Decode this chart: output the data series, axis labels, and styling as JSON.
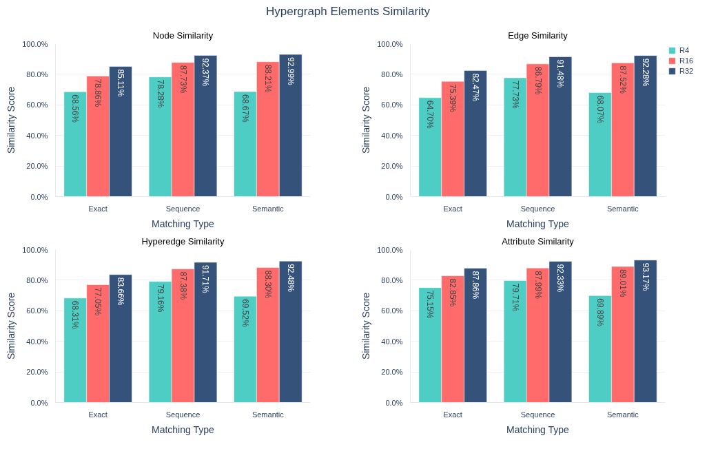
{
  "chart_data": [
    {
      "type": "bar",
      "title": "Node Similarity",
      "xlabel": "Matching Type",
      "ylabel": "Similarity Score",
      "annotations": [
        "Hypergraph Elements Similarity"
      ],
      "categories": [
        "Exact",
        "Sequence",
        "Semantic"
      ],
      "ylim": [
        0,
        100
      ],
      "yticks": [
        {
          "value": 0,
          "label": "0.0%"
        },
        {
          "value": 20,
          "label": "20.0%"
        },
        {
          "value": 40,
          "label": "40.0%"
        },
        {
          "value": 60,
          "label": "60.0%"
        },
        {
          "value": 80,
          "label": "80.0%"
        },
        {
          "value": 100,
          "label": "100.0%"
        }
      ],
      "grid": "y",
      "series": [
        {
          "color": "#4ecdc4",
          "values": [
            68.56,
            78.28,
            68.67
          ],
          "value_labels": [
            "68.56%",
            "78.28%",
            "68.67%"
          ]
        },
        {
          "color": "#ff6b6b",
          "values": [
            78.86,
            87.73,
            88.21
          ],
          "value_labels": [
            "78.86%",
            "87.73%",
            "88.21%"
          ]
        },
        {
          "color": "#34527a",
          "values": [
            85.11,
            92.37,
            92.99
          ],
          "value_labels": [
            "85.11%",
            "92.37%",
            "92.99%"
          ]
        }
      ]
    },
    {
      "type": "bar",
      "title": "Edge Similarity",
      "xlabel": "Matching Type",
      "ylabel": "Similarity Score",
      "categories": [
        "Exact",
        "Sequence",
        "Semantic"
      ],
      "ylim": [
        0,
        100
      ],
      "yticks": [
        {
          "value": 0,
          "label": "0.0%"
        },
        {
          "value": 20,
          "label": "20.0%"
        },
        {
          "value": 40,
          "label": "40.0%"
        },
        {
          "value": 60,
          "label": "60.0%"
        },
        {
          "value": 80,
          "label": "80.0%"
        },
        {
          "value": 100,
          "label": "100.0%"
        }
      ],
      "grid": "y",
      "legend": "right",
      "series": [
        {
          "name": "R4",
          "color": "#4ecdc4",
          "values": [
            64.7,
            77.73,
            68.07
          ],
          "value_labels": [
            "64.70%",
            "77.73%",
            "68.07%"
          ]
        },
        {
          "name": "R16",
          "color": "#ff6b6b",
          "values": [
            75.39,
            86.79,
            87.52
          ],
          "value_labels": [
            "75.39%",
            "86.79%",
            "87.52%"
          ]
        },
        {
          "name": "R32",
          "color": "#34527a",
          "values": [
            82.47,
            91.48,
            92.28
          ],
          "value_labels": [
            "82.47%",
            "91.48%",
            "92.28%"
          ]
        }
      ]
    },
    {
      "type": "bar",
      "title": "Hyperedge Similarity",
      "xlabel": "Matching Type",
      "ylabel": "Similarity Score",
      "categories": [
        "Exact",
        "Sequence",
        "Semantic"
      ],
      "ylim": [
        0,
        100
      ],
      "yticks": [
        {
          "value": 0,
          "label": "0.0%"
        },
        {
          "value": 20,
          "label": "20.0%"
        },
        {
          "value": 40,
          "label": "40.0%"
        },
        {
          "value": 60,
          "label": "60.0%"
        },
        {
          "value": 80,
          "label": "80.0%"
        },
        {
          "value": 100,
          "label": "100.0%"
        }
      ],
      "grid": "y",
      "series": [
        {
          "color": "#4ecdc4",
          "values": [
            68.31,
            79.16,
            69.52
          ],
          "value_labels": [
            "68.31%",
            "79.16%",
            "69.52%"
          ]
        },
        {
          "color": "#ff6b6b",
          "values": [
            77.05,
            87.38,
            88.3
          ],
          "value_labels": [
            "77.05%",
            "87.38%",
            "88.30%"
          ]
        },
        {
          "color": "#34527a",
          "values": [
            83.66,
            91.71,
            92.48
          ],
          "value_labels": [
            "83.66%",
            "91.71%",
            "92.48%"
          ]
        }
      ]
    },
    {
      "type": "bar",
      "title": "Attribute Similarity",
      "xlabel": "Matching Type",
      "ylabel": "Similarity Score",
      "categories": [
        "Exact",
        "Sequence",
        "Semantic"
      ],
      "ylim": [
        0,
        100
      ],
      "yticks": [
        {
          "value": 0,
          "label": "0.0%"
        },
        {
          "value": 20,
          "label": "20.0%"
        },
        {
          "value": 40,
          "label": "40.0%"
        },
        {
          "value": 60,
          "label": "60.0%"
        },
        {
          "value": 80,
          "label": "80.0%"
        },
        {
          "value": 100,
          "label": "100.0%"
        }
      ],
      "grid": "y",
      "series": [
        {
          "color": "#4ecdc4",
          "values": [
            75.15,
            79.71,
            69.89
          ],
          "value_labels": [
            "75.15%",
            "79.71%",
            "69.89%"
          ]
        },
        {
          "color": "#ff6b6b",
          "values": [
            82.85,
            87.99,
            89.01
          ],
          "value_labels": [
            "82.85%",
            "87.99%",
            "89.01%"
          ]
        },
        {
          "color": "#34527a",
          "values": [
            87.86,
            92.33,
            93.17
          ],
          "value_labels": [
            "87.86%",
            "92.33%",
            "93.17%"
          ]
        }
      ]
    }
  ]
}
